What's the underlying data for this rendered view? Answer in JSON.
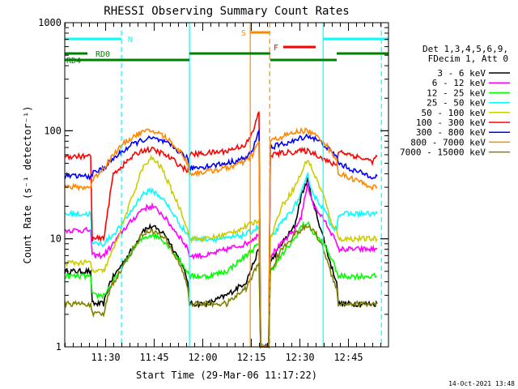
{
  "chart_data": {
    "type": "line",
    "title": "RHESSI Observing Summary Count Rates",
    "xlabel": "Start Time (29-Mar-06 11:17:22)",
    "ylabel": "Count Rate (s⁻¹ detector⁻¹)",
    "y_scale": "log",
    "ylim": [
      1,
      1000
    ],
    "xlim_minutes": [
      0,
      100
    ],
    "x_ticks": [
      {
        "minute": 12.63,
        "label": "11:30"
      },
      {
        "minute": 27.63,
        "label": "11:45"
      },
      {
        "minute": 42.63,
        "label": "12:00"
      },
      {
        "minute": 57.63,
        "label": "12:15"
      },
      {
        "minute": 72.63,
        "label": "12:30"
      },
      {
        "minute": 87.63,
        "label": "12:45"
      }
    ],
    "y_ticks": [
      {
        "value": 1,
        "label": "1"
      },
      {
        "value": 10,
        "label": "10"
      },
      {
        "value": 100,
        "label": "100"
      },
      {
        "value": 1000,
        "label": "1000"
      }
    ],
    "legend": {
      "position": "right",
      "header": [
        "Det 1,3,4,5,6,9,",
        "FDecim 1, Att 0"
      ]
    },
    "series": [
      {
        "name": "3 - 6 keV",
        "color": "#000000",
        "x": [
          0,
          8,
          8.5,
          12,
          14,
          18,
          22,
          24,
          27,
          31,
          36,
          38,
          38.5,
          44,
          50,
          56,
          60,
          60.5,
          63,
          63.5,
          67,
          71,
          73,
          75,
          77,
          80,
          82,
          84,
          84.5,
          90,
          95,
          96.5
        ],
        "y": [
          5,
          5,
          2.5,
          2.5,
          4,
          6,
          9,
          12,
          13,
          11,
          6,
          4,
          2.5,
          2.5,
          3,
          4,
          8,
          1,
          1,
          6,
          9,
          13,
          25,
          35,
          20,
          10,
          6,
          4,
          2.5,
          2.5,
          2.5,
          2.5
        ]
      },
      {
        "name": "6 - 12 keV",
        "color": "#ff00ff",
        "x": [
          0,
          8,
          8.5,
          12,
          15,
          18,
          21,
          24,
          27,
          30,
          33,
          36,
          38,
          38.5,
          44,
          50,
          56,
          60,
          60.5,
          63,
          63.5,
          67,
          71,
          73,
          75,
          77,
          80,
          82,
          84,
          84.5,
          90,
          95,
          96.5
        ],
        "y": [
          12,
          12,
          7,
          7,
          9,
          12,
          15,
          19,
          20,
          17,
          13,
          10,
          8,
          7,
          7,
          8,
          9,
          11,
          1,
          1,
          7,
          9,
          12,
          16,
          32,
          20,
          15,
          12,
          9,
          8,
          8,
          8,
          8
        ]
      },
      {
        "name": "12 - 25 keV",
        "color": "#00ff00",
        "x": [
          0,
          8,
          8.5,
          12,
          15,
          18,
          21,
          24,
          27,
          30,
          33,
          36,
          38,
          38.5,
          44,
          50,
          56,
          60,
          60.5,
          63,
          63.5,
          67,
          71,
          73,
          75,
          77,
          80,
          82,
          84,
          84.5,
          90,
          95,
          96.5
        ],
        "y": [
          4.5,
          4.5,
          3,
          3,
          4,
          5.5,
          8,
          10,
          11,
          10,
          8,
          6,
          5,
          4.5,
          4.5,
          5,
          7,
          9,
          1,
          1,
          5,
          7,
          10,
          13,
          14,
          11,
          9,
          7,
          5,
          4.5,
          4.5,
          4.5,
          4.5
        ]
      },
      {
        "name": "25 - 50 keV",
        "color": "#00ffff",
        "x": [
          0,
          8,
          8.5,
          12,
          15,
          18,
          21,
          24,
          27,
          30,
          33,
          36,
          38,
          38.5,
          44,
          50,
          56,
          60,
          60.5,
          63,
          63.5,
          67,
          71,
          73,
          75,
          77,
          80,
          82,
          84,
          84.5,
          90,
          95,
          96.5
        ],
        "y": [
          17,
          17,
          9,
          9,
          11,
          14,
          19,
          26,
          28,
          24,
          18,
          13,
          11,
          10,
          10,
          10,
          11,
          13,
          1,
          1,
          10,
          14,
          20,
          26,
          38,
          25,
          19,
          14,
          12,
          17,
          17,
          17,
          17
        ]
      },
      {
        "name": "50 - 100 keV",
        "color": "#cccc00",
        "x": [
          0,
          8,
          8.5,
          12,
          15,
          18,
          21,
          24,
          27,
          30,
          33,
          36,
          38,
          38.5,
          44,
          50,
          56,
          60,
          60.5,
          63,
          63.5,
          67,
          71,
          73,
          75,
          77,
          80,
          82,
          84,
          84.5,
          90,
          95,
          96.5
        ],
        "y": [
          6,
          6,
          5,
          5,
          8,
          14,
          25,
          45,
          56,
          45,
          28,
          18,
          12,
          10,
          10,
          11,
          13,
          15,
          1,
          1,
          10,
          20,
          30,
          40,
          55,
          40,
          25,
          15,
          12,
          10,
          10,
          10,
          10
        ]
      },
      {
        "name": "100 - 300 keV",
        "color": "#ff0000",
        "x": [
          0,
          8,
          8.5,
          12,
          15,
          18,
          21,
          24,
          27,
          30,
          33,
          36,
          38,
          38.5,
          44,
          50,
          56,
          58,
          60,
          60.5,
          63,
          63.5,
          67,
          71,
          73,
          75,
          77,
          80,
          82,
          84,
          84.5,
          90,
          95,
          96.5
        ],
        "y": [
          58,
          58,
          10,
          10,
          40,
          48,
          58,
          66,
          67,
          62,
          55,
          47,
          42,
          60,
          62,
          65,
          75,
          95,
          150,
          1,
          1,
          60,
          62,
          64,
          65,
          65,
          62,
          55,
          50,
          48,
          65,
          58,
          52,
          58
        ]
      },
      {
        "name": "300 - 800 keV",
        "color": "#0000ff",
        "x": [
          0,
          8,
          8.5,
          12,
          15,
          18,
          21,
          24,
          27,
          30,
          33,
          36,
          38,
          38.5,
          44,
          50,
          56,
          58,
          60,
          60.5,
          63,
          63.5,
          67,
          71,
          73,
          75,
          77,
          80,
          82,
          84,
          84.5,
          90,
          95,
          96.5
        ],
        "y": [
          38,
          38,
          40,
          45,
          55,
          65,
          75,
          82,
          85,
          80,
          72,
          62,
          55,
          45,
          47,
          50,
          56,
          65,
          100,
          1,
          1,
          70,
          75,
          80,
          86,
          90,
          85,
          75,
          65,
          58,
          50,
          42,
          38,
          38
        ]
      },
      {
        "name": "800 - 7000 keV",
        "color": "#ff8800",
        "x": [
          0,
          8,
          8.5,
          12,
          15,
          18,
          21,
          24,
          27,
          30,
          33,
          36,
          38,
          38.5,
          44,
          50,
          56,
          58,
          60,
          60.5,
          63,
          63.5,
          67,
          71,
          73,
          75,
          77,
          80,
          82,
          84,
          84.5,
          90,
          95,
          96.5
        ],
        "y": [
          30,
          30,
          35,
          45,
          60,
          75,
          88,
          97,
          100,
          92,
          78,
          62,
          50,
          40,
          42,
          45,
          52,
          60,
          80,
          1,
          1,
          80,
          88,
          96,
          100,
          100,
          92,
          80,
          65,
          55,
          40,
          35,
          30,
          30
        ]
      },
      {
        "name": "7000 - 15000 keV",
        "color": "#808000",
        "x": [
          0,
          8,
          8.5,
          12,
          14,
          18,
          22,
          24,
          27,
          31,
          36,
          38,
          38.5,
          44,
          50,
          56,
          60,
          60.5,
          63,
          63.5,
          67,
          71,
          73,
          75,
          77,
          80,
          82,
          84,
          84.5,
          90,
          95,
          96.5
        ],
        "y": [
          2.5,
          2.5,
          2,
          2,
          3.5,
          5.5,
          9,
          11,
          12,
          10,
          5.5,
          3.5,
          2.5,
          2.5,
          2.5,
          3.5,
          6,
          1,
          1,
          5,
          8,
          11,
          12,
          13,
          12,
          8,
          5,
          3.5,
          2.5,
          2.5,
          2.5,
          2.5
        ]
      }
    ],
    "vertical_markers": [
      {
        "minute": 17.5,
        "color": "#00ffff",
        "style": "dashed"
      },
      {
        "minute": 38.5,
        "color": "#00ffff",
        "style": "solid"
      },
      {
        "minute": 57.3,
        "color": "#ff8800",
        "style": "solid"
      },
      {
        "minute": 63.3,
        "color": "#ff8800",
        "style": "dashed"
      },
      {
        "minute": 79.8,
        "color": "#00ffff",
        "style": "solid"
      },
      {
        "minute": 97.8,
        "color": "#00ffff",
        "style": "dashed"
      }
    ],
    "status_bars": [
      {
        "label": "N",
        "color": "#00ffff",
        "level": 0,
        "segments": [
          [
            0,
            17.5
          ],
          [
            79.8,
            100
          ]
        ],
        "label_at": 19.5
      },
      {
        "label": "S",
        "color": "#ff8800",
        "level": -1,
        "segments": [
          [
            57.3,
            63.3
          ]
        ],
        "label_at": 54.5
      },
      {
        "label": "F",
        "color": "#ff0000",
        "level": 1,
        "segments": [
          [
            67.5,
            77.5
          ]
        ],
        "label_at": 64.5
      },
      {
        "label": "RD0",
        "color": "#008000",
        "level": 2,
        "segments": [
          [
            0,
            7
          ],
          [
            38.5,
            63.5
          ],
          [
            84,
            100
          ]
        ],
        "label_at": 9.5
      },
      {
        "label": "RD4",
        "color": "#008000",
        "level": 3,
        "segments": [
          [
            0,
            38.5
          ],
          [
            63.5,
            84
          ]
        ],
        "label_at": 0.5
      }
    ]
  },
  "timestamp": "14-Oct-2021 13:48"
}
